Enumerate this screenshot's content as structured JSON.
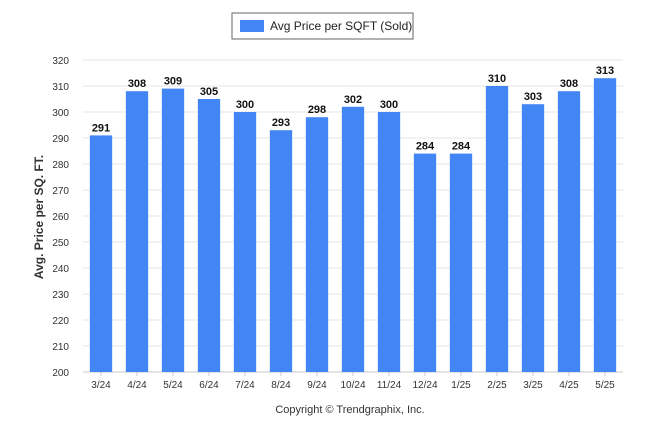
{
  "chart_data": {
    "type": "bar",
    "categories": [
      "3/24",
      "4/24",
      "5/24",
      "6/24",
      "7/24",
      "8/24",
      "9/24",
      "10/24",
      "11/24",
      "12/24",
      "1/25",
      "2/25",
      "3/25",
      "4/25",
      "5/25"
    ],
    "series": [
      {
        "name": "Avg Price per SQFT (Sold)",
        "values": [
          291,
          308,
          309,
          305,
          300,
          293,
          298,
          302,
          300,
          284,
          284,
          310,
          303,
          308,
          313
        ]
      }
    ],
    "ylabel": "Avg. Price per SQ. FT.",
    "ylim": [
      200,
      320
    ],
    "yticks": [
      200,
      210,
      220,
      230,
      240,
      250,
      260,
      270,
      280,
      290,
      300,
      310,
      320
    ],
    "grid": true,
    "legend_position": "top-center",
    "bar_color": "#4285f4",
    "data_labels": true
  },
  "footer": {
    "copyright": "Copyright © Trendgraphix, Inc."
  }
}
